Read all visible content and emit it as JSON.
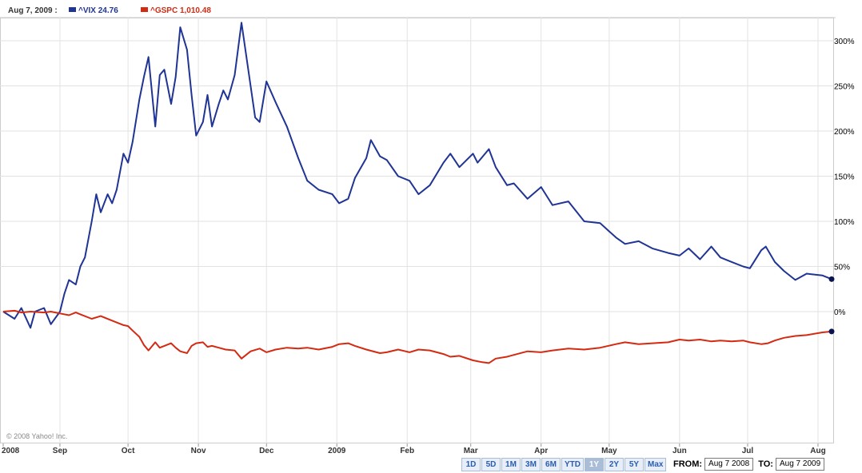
{
  "legend": {
    "date": "Aug 7, 2009 :",
    "series": [
      {
        "label": "^VIX 24.76",
        "color": "#1f3494"
      },
      {
        "label": "^GSPC 1,010.48",
        "color": "#d42a12"
      }
    ]
  },
  "copyright": "© 2008 Yahoo! Inc.",
  "range_buttons": [
    "1D",
    "5D",
    "1M",
    "3M",
    "6M",
    "YTD",
    "1Y",
    "2Y",
    "5Y",
    "Max"
  ],
  "active_range": "1Y",
  "from_label": "FROM:",
  "from_value": "Aug 7 2008",
  "to_label": "TO:",
  "to_value": "Aug 7 2009",
  "chart_data": {
    "type": "line",
    "y_unit": "% change",
    "ylim": [
      -160,
      340
    ],
    "y_ticks": [
      0,
      50,
      100,
      150,
      200,
      250,
      300
    ],
    "y_tick_labels": [
      "0%",
      "50%",
      "100%",
      "150%",
      "200%",
      "250%",
      "300%"
    ],
    "x_ticks": [
      {
        "date": "2008-08-07",
        "label": "2008"
      },
      {
        "date": "2008-09-01",
        "label": "Sep"
      },
      {
        "date": "2008-10-01",
        "label": "Oct"
      },
      {
        "date": "2008-11-01",
        "label": "Nov"
      },
      {
        "date": "2008-12-01",
        "label": "Dec"
      },
      {
        "date": "2009-01-01",
        "label": "2009"
      },
      {
        "date": "2009-02-01",
        "label": "Feb"
      },
      {
        "date": "2009-03-01",
        "label": "Mar"
      },
      {
        "date": "2009-04-01",
        "label": "Apr"
      },
      {
        "date": "2009-05-01",
        "label": "May"
      },
      {
        "date": "2009-06-01",
        "label": "Jun"
      },
      {
        "date": "2009-07-01",
        "label": "Jul"
      },
      {
        "date": "2009-08-01",
        "label": "Aug"
      }
    ],
    "grid": true,
    "legend_position": "top-left",
    "series": [
      {
        "name": "^VIX",
        "color": "#1f3494",
        "points": [
          [
            "2008-08-07",
            0
          ],
          [
            "2008-08-12",
            -8
          ],
          [
            "2008-08-15",
            4
          ],
          [
            "2008-08-19",
            -18
          ],
          [
            "2008-08-21",
            0
          ],
          [
            "2008-08-25",
            4
          ],
          [
            "2008-08-28",
            -14
          ],
          [
            "2008-09-01",
            0
          ],
          [
            "2008-09-03",
            20
          ],
          [
            "2008-09-05",
            35
          ],
          [
            "2008-09-08",
            30
          ],
          [
            "2008-09-10",
            50
          ],
          [
            "2008-09-12",
            60
          ],
          [
            "2008-09-15",
            100
          ],
          [
            "2008-09-17",
            130
          ],
          [
            "2008-09-19",
            110
          ],
          [
            "2008-09-22",
            130
          ],
          [
            "2008-09-24",
            120
          ],
          [
            "2008-09-26",
            135
          ],
          [
            "2008-09-29",
            175
          ],
          [
            "2008-10-01",
            165
          ],
          [
            "2008-10-03",
            188
          ],
          [
            "2008-10-06",
            235
          ],
          [
            "2008-10-08",
            260
          ],
          [
            "2008-10-10",
            282
          ],
          [
            "2008-10-13",
            205
          ],
          [
            "2008-10-15",
            262
          ],
          [
            "2008-10-17",
            268
          ],
          [
            "2008-10-20",
            230
          ],
          [
            "2008-10-22",
            260
          ],
          [
            "2008-10-24",
            315
          ],
          [
            "2008-10-27",
            290
          ],
          [
            "2008-10-29",
            240
          ],
          [
            "2008-10-31",
            195
          ],
          [
            "2008-11-03",
            210
          ],
          [
            "2008-11-05",
            240
          ],
          [
            "2008-11-07",
            205
          ],
          [
            "2008-11-10",
            230
          ],
          [
            "2008-11-12",
            245
          ],
          [
            "2008-11-14",
            235
          ],
          [
            "2008-11-17",
            262
          ],
          [
            "2008-11-20",
            320
          ],
          [
            "2008-11-24",
            250
          ],
          [
            "2008-11-26",
            215
          ],
          [
            "2008-11-28",
            210
          ],
          [
            "2008-12-01",
            255
          ],
          [
            "2008-12-05",
            232
          ],
          [
            "2008-12-10",
            205
          ],
          [
            "2008-12-15",
            170
          ],
          [
            "2008-12-19",
            145
          ],
          [
            "2008-12-24",
            135
          ],
          [
            "2008-12-30",
            130
          ],
          [
            "2009-01-02",
            120
          ],
          [
            "2009-01-06",
            125
          ],
          [
            "2009-01-09",
            148
          ],
          [
            "2009-01-14",
            170
          ],
          [
            "2009-01-16",
            190
          ],
          [
            "2009-01-20",
            172
          ],
          [
            "2009-01-23",
            168
          ],
          [
            "2009-01-28",
            150
          ],
          [
            "2009-02-02",
            145
          ],
          [
            "2009-02-06",
            130
          ],
          [
            "2009-02-11",
            140
          ],
          [
            "2009-02-17",
            165
          ],
          [
            "2009-02-20",
            175
          ],
          [
            "2009-02-24",
            160
          ],
          [
            "2009-03-02",
            175
          ],
          [
            "2009-03-04",
            165
          ],
          [
            "2009-03-09",
            180
          ],
          [
            "2009-03-12",
            160
          ],
          [
            "2009-03-17",
            140
          ],
          [
            "2009-03-20",
            142
          ],
          [
            "2009-03-26",
            125
          ],
          [
            "2009-04-01",
            138
          ],
          [
            "2009-04-06",
            118
          ],
          [
            "2009-04-13",
            122
          ],
          [
            "2009-04-20",
            100
          ],
          [
            "2009-04-27",
            98
          ],
          [
            "2009-05-04",
            82
          ],
          [
            "2009-05-08",
            75
          ],
          [
            "2009-05-14",
            78
          ],
          [
            "2009-05-20",
            70
          ],
          [
            "2009-05-27",
            65
          ],
          [
            "2009-06-01",
            62
          ],
          [
            "2009-06-05",
            70
          ],
          [
            "2009-06-10",
            58
          ],
          [
            "2009-06-15",
            72
          ],
          [
            "2009-06-19",
            60
          ],
          [
            "2009-06-24",
            55
          ],
          [
            "2009-06-29",
            50
          ],
          [
            "2009-07-02",
            48
          ],
          [
            "2009-07-07",
            68
          ],
          [
            "2009-07-09",
            72
          ],
          [
            "2009-07-13",
            55
          ],
          [
            "2009-07-17",
            45
          ],
          [
            "2009-07-22",
            35
          ],
          [
            "2009-07-27",
            42
          ],
          [
            "2009-08-03",
            40
          ],
          [
            "2009-08-07",
            36
          ]
        ]
      },
      {
        "name": "^GSPC",
        "color": "#d42a12",
        "points": [
          [
            "2008-08-07",
            0
          ],
          [
            "2008-08-12",
            1
          ],
          [
            "2008-08-15",
            -1
          ],
          [
            "2008-08-19",
            0
          ],
          [
            "2008-08-25",
            -1
          ],
          [
            "2008-08-28",
            0
          ],
          [
            "2008-09-01",
            -2
          ],
          [
            "2008-09-05",
            -4
          ],
          [
            "2008-09-08",
            -1
          ],
          [
            "2008-09-10",
            -3
          ],
          [
            "2008-09-15",
            -8
          ],
          [
            "2008-09-19",
            -5
          ],
          [
            "2008-09-24",
            -10
          ],
          [
            "2008-09-29",
            -15
          ],
          [
            "2008-10-01",
            -16
          ],
          [
            "2008-10-03",
            -21
          ],
          [
            "2008-10-06",
            -28
          ],
          [
            "2008-10-08",
            -37
          ],
          [
            "2008-10-10",
            -43
          ],
          [
            "2008-10-13",
            -34
          ],
          [
            "2008-10-15",
            -40
          ],
          [
            "2008-10-17",
            -38
          ],
          [
            "2008-10-20",
            -35
          ],
          [
            "2008-10-22",
            -40
          ],
          [
            "2008-10-24",
            -44
          ],
          [
            "2008-10-27",
            -46
          ],
          [
            "2008-10-29",
            -38
          ],
          [
            "2008-10-31",
            -35
          ],
          [
            "2008-11-03",
            -34
          ],
          [
            "2008-11-05",
            -39
          ],
          [
            "2008-11-07",
            -38
          ],
          [
            "2008-11-10",
            -40
          ],
          [
            "2008-11-13",
            -42
          ],
          [
            "2008-11-17",
            -43
          ],
          [
            "2008-11-20",
            -52
          ],
          [
            "2008-11-24",
            -44
          ],
          [
            "2008-11-28",
            -41
          ],
          [
            "2008-12-01",
            -45
          ],
          [
            "2008-12-05",
            -42
          ],
          [
            "2008-12-10",
            -40
          ],
          [
            "2008-12-15",
            -41
          ],
          [
            "2008-12-19",
            -40
          ],
          [
            "2008-12-24",
            -42
          ],
          [
            "2008-12-30",
            -39
          ],
          [
            "2009-01-02",
            -36
          ],
          [
            "2009-01-06",
            -35
          ],
          [
            "2009-01-09",
            -38
          ],
          [
            "2009-01-14",
            -42
          ],
          [
            "2009-01-20",
            -46
          ],
          [
            "2009-01-23",
            -45
          ],
          [
            "2009-01-28",
            -42
          ],
          [
            "2009-02-02",
            -45
          ],
          [
            "2009-02-06",
            -42
          ],
          [
            "2009-02-11",
            -43
          ],
          [
            "2009-02-17",
            -47
          ],
          [
            "2009-02-20",
            -50
          ],
          [
            "2009-02-24",
            -49
          ],
          [
            "2009-03-02",
            -54
          ],
          [
            "2009-03-06",
            -56
          ],
          [
            "2009-03-09",
            -57
          ],
          [
            "2009-03-12",
            -52
          ],
          [
            "2009-03-17",
            -50
          ],
          [
            "2009-03-20",
            -48
          ],
          [
            "2009-03-26",
            -44
          ],
          [
            "2009-04-01",
            -45
          ],
          [
            "2009-04-06",
            -43
          ],
          [
            "2009-04-13",
            -41
          ],
          [
            "2009-04-20",
            -42
          ],
          [
            "2009-04-27",
            -40
          ],
          [
            "2009-05-04",
            -36
          ],
          [
            "2009-05-08",
            -34
          ],
          [
            "2009-05-14",
            -36
          ],
          [
            "2009-05-20",
            -35
          ],
          [
            "2009-05-27",
            -34
          ],
          [
            "2009-06-01",
            -31
          ],
          [
            "2009-06-05",
            -32
          ],
          [
            "2009-06-10",
            -31
          ],
          [
            "2009-06-15",
            -33
          ],
          [
            "2009-06-19",
            -32
          ],
          [
            "2009-06-24",
            -33
          ],
          [
            "2009-06-29",
            -32
          ],
          [
            "2009-07-02",
            -34
          ],
          [
            "2009-07-07",
            -36
          ],
          [
            "2009-07-10",
            -35
          ],
          [
            "2009-07-13",
            -32
          ],
          [
            "2009-07-17",
            -29
          ],
          [
            "2009-07-22",
            -27
          ],
          [
            "2009-07-27",
            -26
          ],
          [
            "2009-08-03",
            -23
          ],
          [
            "2009-08-07",
            -22
          ]
        ]
      }
    ]
  }
}
